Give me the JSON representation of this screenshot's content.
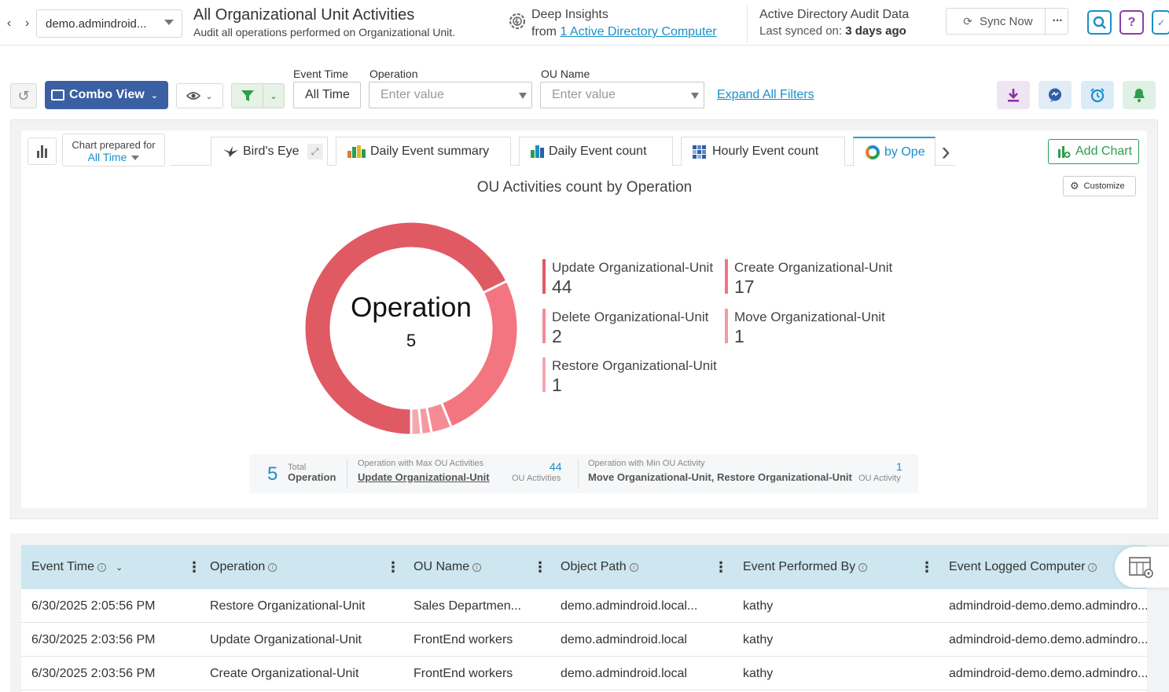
{
  "header": {
    "tenant": "demo.admindroid...",
    "title": "All Organizational Unit Activities",
    "subtitle": "Audit all operations performed on Organizational Unit.",
    "insights_title": "Deep Insights",
    "insights_from": "from",
    "insights_link": "1 Active Directory Computer",
    "audit_title": "Active Directory Audit Data",
    "audit_synced_label": "Last synced on:",
    "audit_synced_value": "3 days ago",
    "sync_label": "Sync Now",
    "help_label": "?"
  },
  "filters": {
    "combo_view": "Combo View",
    "event_time_label": "Event Time",
    "event_time_value": "All Time",
    "operation_label": "Operation",
    "operation_placeholder": "Enter value",
    "ou_name_label": "OU Name",
    "ou_name_placeholder": "Enter value",
    "expand_all": "Expand All Filters"
  },
  "chart_panel": {
    "prepared_label": "Chart prepared for",
    "prepared_value": "All Time",
    "tabs": [
      "Bird's Eye",
      "Daily Event summary",
      "Daily Event count",
      "Hourly Event count",
      "by Ope"
    ],
    "add_chart": "Add Chart",
    "customize": "Customize"
  },
  "chart_data": {
    "type": "pie",
    "title": "OU Activities count by Operation",
    "center_label": "Operation",
    "center_value": "5",
    "categories": [
      "Update Organizational-Unit",
      "Create Organizational-Unit",
      "Delete Organizational-Unit",
      "Move Organizational-Unit",
      "Restore Organizational-Unit"
    ],
    "values": [
      44,
      17,
      2,
      1,
      1
    ],
    "colors": [
      "#e05a64",
      "#f27580",
      "#f58c95",
      "#f39aa2",
      "#f5a9af"
    ]
  },
  "summary": {
    "total_value": "5",
    "total_small": "Total",
    "total_label": "Operation",
    "max_label": "Operation with Max OU Activities",
    "max_name": "Update Organizational-Unit",
    "max_value": "44",
    "max_unit": "OU Activities",
    "min_label": "Operation with Min OU Activity",
    "min_name": "Move Organizational-Unit, Restore Organizational-Unit",
    "min_value": "1",
    "min_unit": "OU Activity"
  },
  "table": {
    "columns": [
      "Event Time",
      "Operation",
      "OU Name",
      "Object Path",
      "Event Performed By",
      "Event Logged Computer"
    ],
    "rows": [
      [
        "6/30/2025 2:05:56 PM",
        "Restore Organizational-Unit",
        "Sales Departmen...",
        "demo.admindroid.local...",
        "kathy",
        "admindroid-demo.demo.admindro..."
      ],
      [
        "6/30/2025 2:03:56 PM",
        "Update Organizational-Unit",
        "FrontEnd workers",
        "demo.admindroid.local",
        "kathy",
        "admindroid-demo.demo.admindro..."
      ],
      [
        "6/30/2025 2:03:56 PM",
        "Create Organizational-Unit",
        "FrontEnd workers",
        "demo.admindroid.local",
        "kathy",
        "admindroid-demo.demo.admindro..."
      ]
    ]
  }
}
